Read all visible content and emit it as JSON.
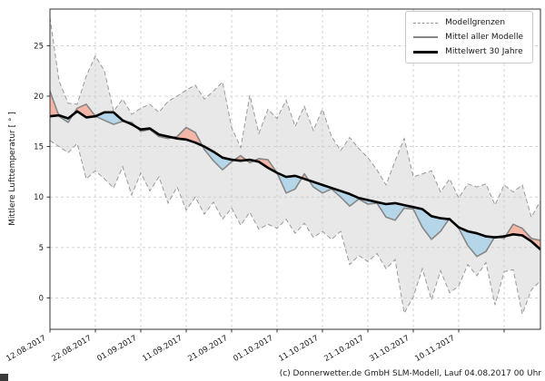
{
  "figure": {
    "footer": "(c) Donnerwetter.de GmbH SLM-Modell, Lauf 04.08.2017 00 Uhr"
  },
  "chart_data": {
    "type": "line",
    "title": "",
    "xlabel": "",
    "ylabel": "Mittlere Lufttemperatur [ ° ]",
    "grid": true,
    "legend_position": "top-right",
    "legend": {
      "entries": [
        {
          "label": "Modellgrenzen",
          "style": "dashed-gray"
        },
        {
          "label": "Mittel aller Modelle",
          "style": "solid-gray"
        },
        {
          "label": "Mittelwert 30 Jahre",
          "style": "solid-black-thick"
        }
      ]
    },
    "y_ticks": [
      0,
      5,
      10,
      15,
      20,
      25
    ],
    "y_tick_labels": [
      "0",
      "5",
      "10",
      "15",
      "20",
      "25"
    ],
    "ylim": [
      -3.1,
      28.6
    ],
    "x_tick_days": [
      0,
      10,
      20,
      30,
      40,
      50,
      60,
      70,
      80,
      90,
      100
    ],
    "x_tick_labels": [
      "12.08.2017",
      "22.08.2017",
      "01.09.2017",
      "11.09.2017",
      "21.09.2017",
      "01.10.2017",
      "11.10.2017",
      "21.10.2017",
      "31.10.2017",
      "10.11.2017",
      ""
    ],
    "xlim_days": [
      0,
      108
    ],
    "days": [
      0,
      2,
      4,
      6,
      8,
      10,
      12,
      14,
      16,
      18,
      20,
      22,
      24,
      26,
      28,
      30,
      32,
      34,
      36,
      38,
      40,
      42,
      44,
      46,
      48,
      50,
      52,
      54,
      56,
      58,
      60,
      62,
      64,
      66,
      68,
      70,
      72,
      74,
      76,
      78,
      80,
      82,
      84,
      86,
      88,
      90,
      92,
      94,
      96,
      98,
      100,
      102,
      104,
      106,
      108
    ],
    "series": [
      {
        "name": "Modellgrenze oben",
        "role": "upper",
        "values": [
          27.8,
          21.5,
          19.3,
          19.2,
          22.0,
          24.0,
          22.5,
          18.5,
          19.7,
          18.2,
          18.8,
          19.2,
          18.4,
          19.5,
          20.0,
          20.6,
          21.1,
          19.7,
          20.5,
          21.4,
          16.9,
          14.9,
          20.1,
          16.3,
          18.7,
          17.8,
          19.6,
          17.0,
          19.0,
          16.6,
          18.7,
          16.0,
          14.6,
          15.9,
          14.8,
          13.9,
          12.7,
          11.2,
          13.6,
          15.8,
          12.0,
          12.3,
          12.6,
          10.5,
          11.8,
          9.9,
          11.3,
          11.0,
          11.3,
          9.2,
          11.2,
          10.5,
          11.2,
          8.0,
          9.6
        ]
      },
      {
        "name": "Modellgrenze unten",
        "role": "lower",
        "values": [
          15.6,
          15.0,
          14.4,
          15.3,
          11.8,
          12.6,
          11.8,
          10.9,
          13.0,
          10.2,
          12.4,
          10.6,
          12.0,
          9.4,
          11.0,
          8.7,
          10.0,
          8.3,
          9.5,
          7.8,
          8.9,
          7.2,
          8.5,
          6.8,
          7.3,
          6.9,
          7.8,
          6.4,
          7.4,
          6.0,
          6.6,
          5.8,
          6.6,
          3.3,
          4.2,
          3.6,
          4.4,
          2.9,
          3.8,
          -1.5,
          0.1,
          2.9,
          -0.2,
          2.7,
          0.5,
          1.2,
          3.3,
          2.2,
          3.5,
          -0.7,
          2.6,
          2.8,
          -1.6,
          0.8,
          1.7
        ]
      },
      {
        "name": "Mittel aller Modelle",
        "role": "model_mean",
        "values": [
          20.5,
          18.0,
          17.4,
          18.8,
          19.2,
          18.0,
          17.6,
          17.2,
          17.5,
          17.4,
          16.5,
          16.7,
          16.0,
          15.8,
          16.0,
          16.9,
          16.4,
          14.7,
          13.6,
          12.7,
          13.5,
          14.1,
          13.4,
          13.8,
          13.7,
          12.4,
          10.4,
          10.8,
          12.3,
          11.0,
          10.4,
          10.8,
          10.0,
          9.1,
          9.8,
          9.3,
          9.4,
          8.0,
          7.7,
          8.9,
          8.8,
          7.0,
          5.8,
          6.6,
          7.9,
          6.9,
          5.2,
          4.1,
          4.6,
          6.1,
          5.9,
          7.3,
          6.9,
          5.9,
          5.7
        ]
      },
      {
        "name": "Mittelwert 30 Jahre",
        "role": "mean30y",
        "values": [
          18.0,
          18.1,
          17.8,
          18.5,
          17.9,
          18.0,
          18.4,
          18.4,
          17.6,
          17.2,
          16.7,
          16.8,
          16.2,
          16.0,
          15.8,
          15.7,
          15.4,
          15.0,
          14.5,
          13.9,
          13.7,
          13.6,
          13.7,
          13.5,
          12.9,
          12.4,
          12.0,
          12.1,
          11.8,
          11.5,
          11.2,
          10.9,
          10.6,
          10.3,
          9.9,
          9.7,
          9.5,
          9.3,
          9.4,
          9.2,
          9.0,
          8.8,
          8.1,
          7.9,
          7.8,
          7.0,
          6.6,
          6.4,
          6.1,
          6.0,
          6.1,
          6.3,
          6.2,
          5.6,
          4.8
        ]
      }
    ],
    "colors": {
      "envelope_fill": "#e8e8e8",
      "envelope_border": "#999999",
      "above_fill": "#f3b6a7",
      "below_fill": "#b5d5e8",
      "model_mean": "#878787",
      "mean30y": "#000000",
      "grid": "#c9c9c9",
      "frame": "#333333",
      "text": "#1a1a1a"
    }
  }
}
